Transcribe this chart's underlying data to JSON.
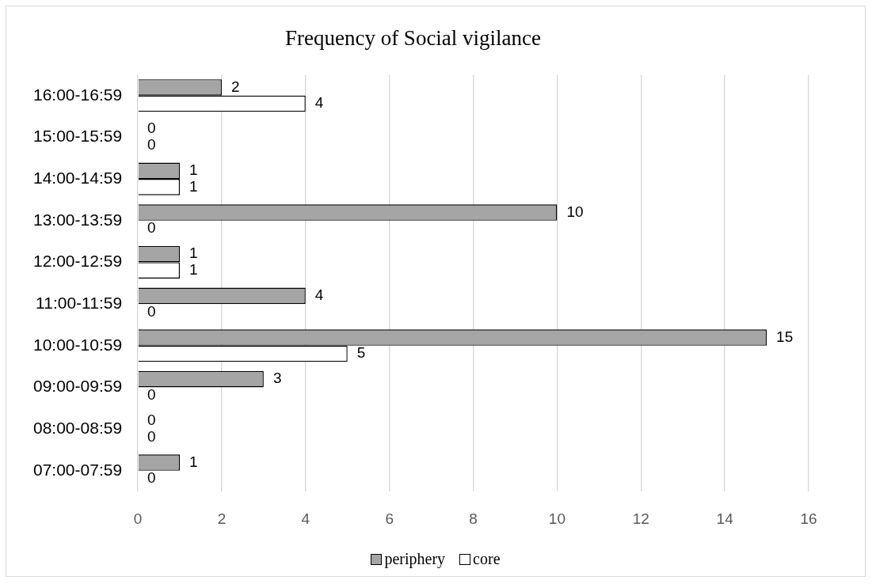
{
  "chart_data": {
    "type": "bar",
    "orientation": "horizontal",
    "title": "Frequency of Social vigilance",
    "categories": [
      "16:00-16:59",
      "15:00-15:59",
      "14:00-14:59",
      "13:00-13:59",
      "12:00-12:59",
      "11:00-11:59",
      "10:00-10:59",
      "09:00-09:59",
      "08:00-08:59",
      "07:00-07:59"
    ],
    "series": [
      {
        "name": "periphery",
        "color": "#a5a5a5",
        "values": [
          2,
          0,
          1,
          10,
          1,
          4,
          15,
          3,
          0,
          1
        ]
      },
      {
        "name": "core",
        "color": "#ffffff",
        "values": [
          4,
          0,
          1,
          0,
          1,
          0,
          5,
          0,
          0,
          0
        ]
      }
    ],
    "xlim": [
      0,
      16
    ],
    "xticks": [
      0,
      2,
      4,
      6,
      8,
      10,
      12,
      14,
      16
    ],
    "grid": "x",
    "legend": "bottom",
    "data_labels": true
  }
}
